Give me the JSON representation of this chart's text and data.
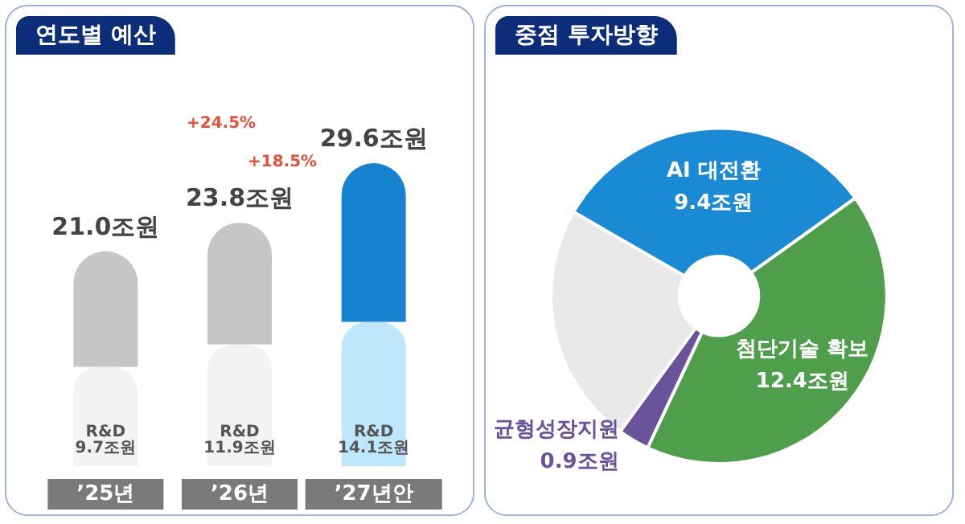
{
  "chart_data": [
    {
      "type": "bar",
      "title": "연도별 예산",
      "categories": [
        "’25년",
        "’26년",
        "’27년안"
      ],
      "stacked": true,
      "legend": false,
      "series": [
        {
          "name": "R&D",
          "colors": [
            "#f3f3f3",
            "#f3f3f3",
            "#bfe7fb"
          ],
          "values": [
            9.7,
            11.9,
            14.1
          ],
          "value_labels": [
            "9.7조원",
            "11.9조원",
            "14.1조원"
          ]
        },
        {
          "colors": [
            "#c6c6c6",
            "#c6c6c6",
            "#1583d0"
          ],
          "values": [
            11.3,
            11.9,
            15.5
          ]
        }
      ],
      "totals": [
        "21.0조원",
        "23.8조원",
        "29.6조원"
      ],
      "annotations": [
        "+24.5%",
        "+18.5%"
      ]
    },
    {
      "type": "donut",
      "title": "중점 투자방향",
      "categories": [
        "AI 대전환",
        "첨단기술 확보",
        "균형성장지원",
        null
      ],
      "values": [
        9.4,
        12.4,
        0.9,
        6.9
      ],
      "value_labels": [
        "9.4조원",
        "12.4조원",
        "0.9조원",
        null
      ],
      "colors": [
        "#1a8ad4",
        "#4f9e4c",
        "#6b539c",
        "#e9e9e9"
      ],
      "legend": false
    }
  ]
}
